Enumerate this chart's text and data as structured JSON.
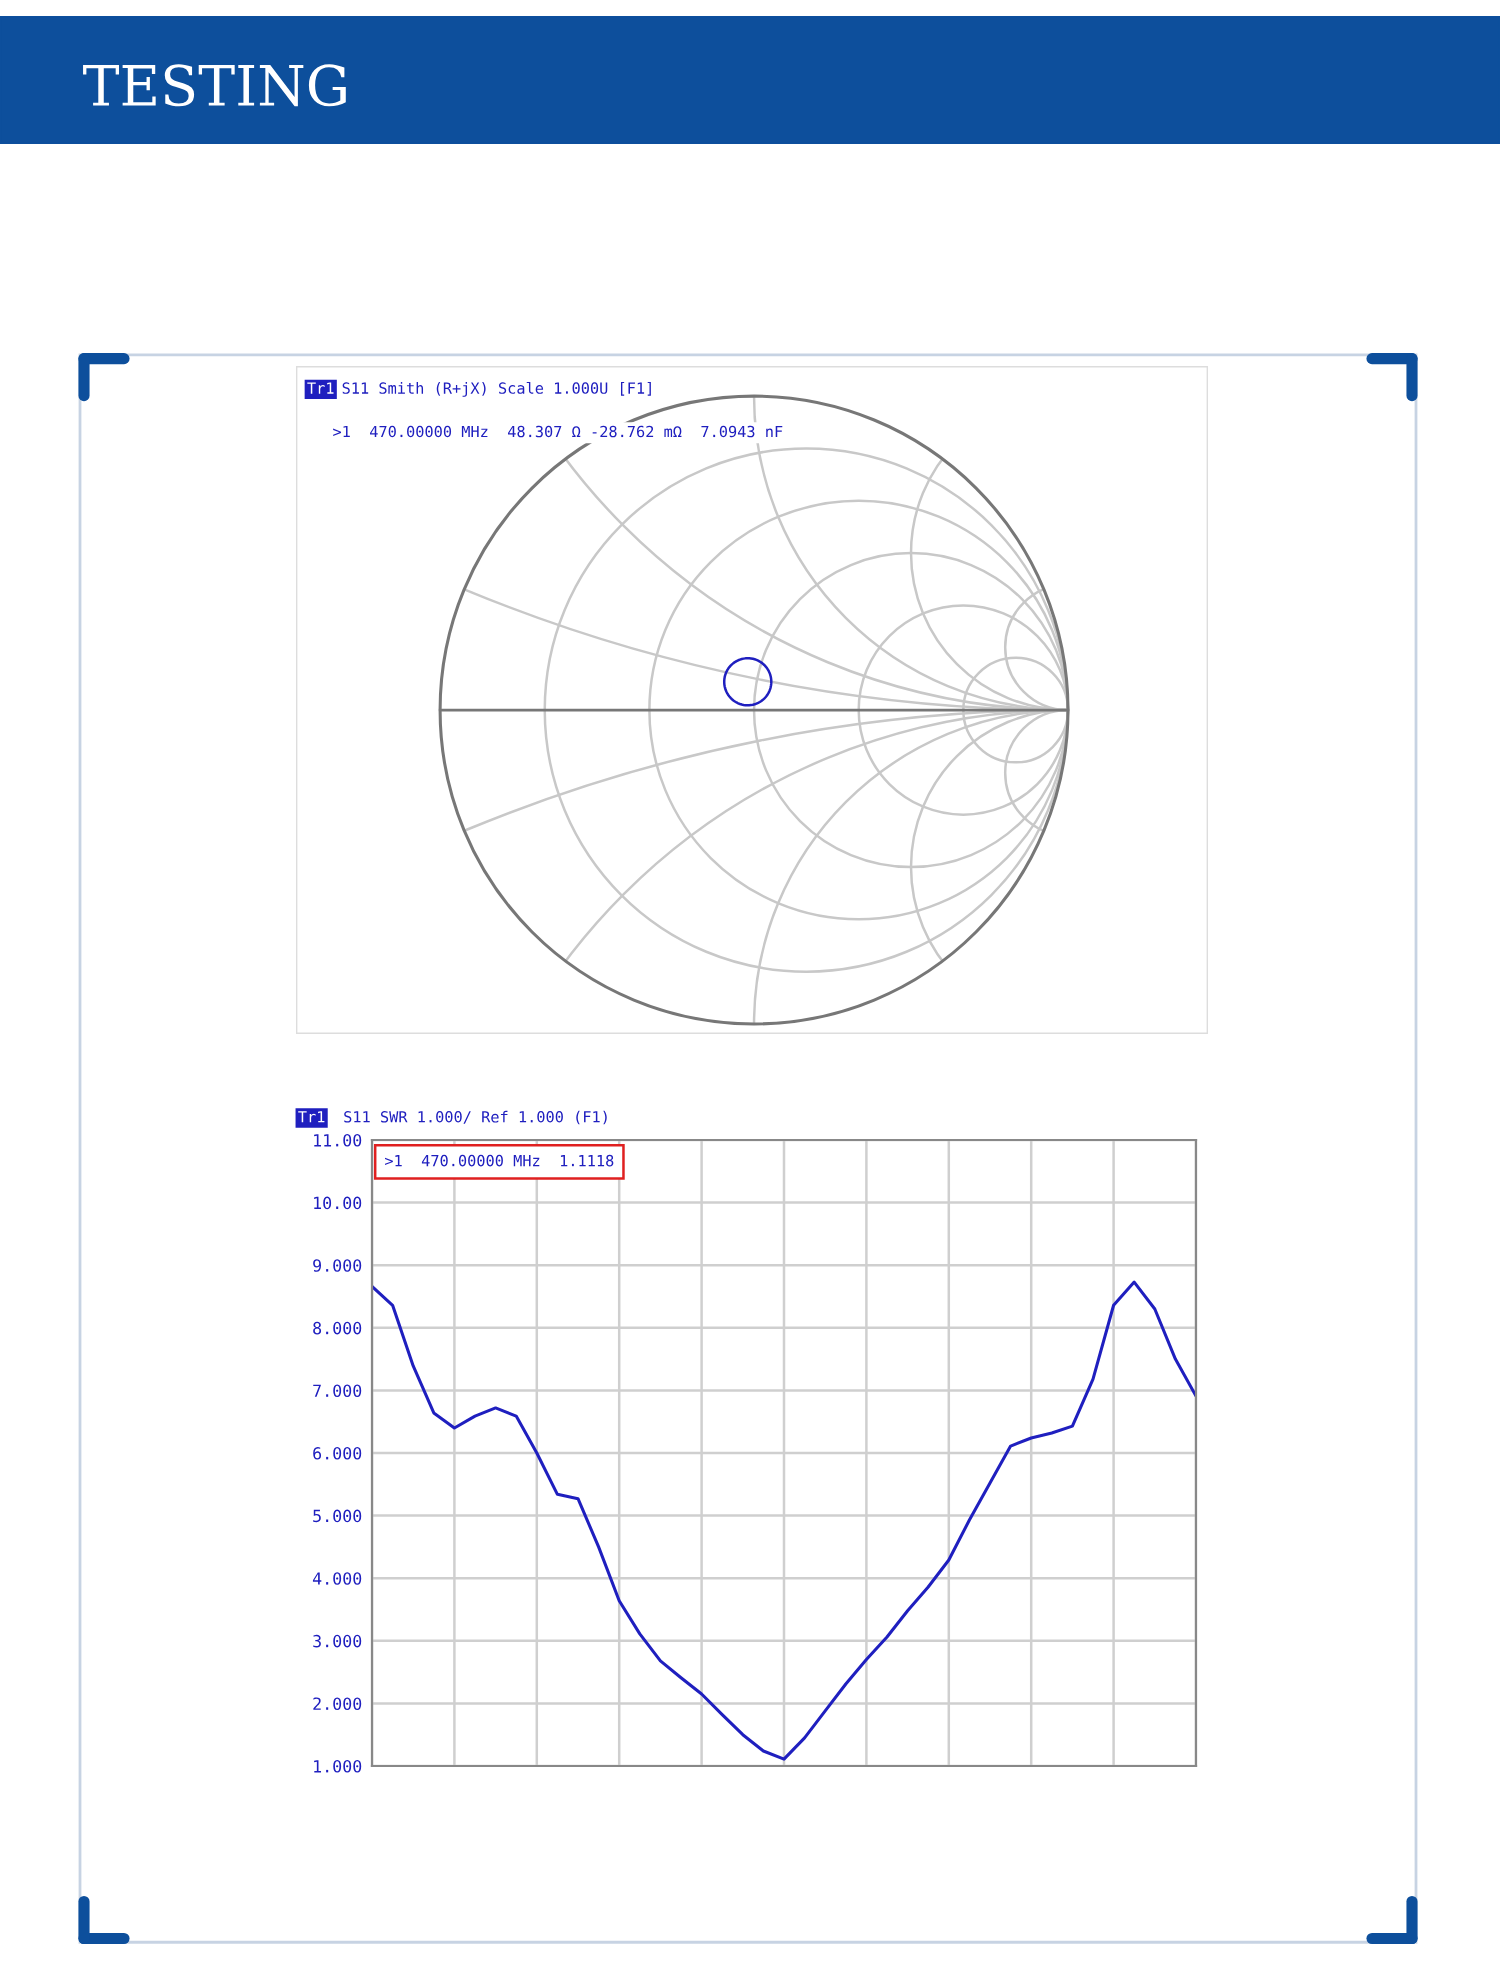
{
  "chart_data": [
    {
      "type": "other",
      "title": "TESTING"
    },
    {
      "type": "other",
      "title": "S11 Smith (R+jX) Scale 1.000U [F1]",
      "subtitle": "Tr1",
      "annotations": [
        ">1  470.00000 MHz  48.307 Ω -28.762 mΩ  7.0943 nF"
      ]
    },
    {
      "type": "line",
      "title": "S11 SWR 1.000/ Ref 1.000 (F1)",
      "subtitle": "Tr1",
      "annotations": [
        ">1  470.00000 MHz  1.1118"
      ],
      "categories": [
        null,
        null,
        null,
        null,
        null,
        null,
        null,
        null,
        null,
        null,
        null,
        null,
        null,
        null,
        null,
        null,
        null,
        null,
        null,
        null,
        null,
        null,
        null,
        null,
        null,
        null,
        null,
        null,
        null,
        null,
        null,
        null,
        null,
        null,
        null,
        null,
        null,
        null,
        null,
        null,
        null
      ],
      "series": [
        {
          "color": "#1f1fbf",
          "values": [
            8.66,
            8.36,
            7.39,
            6.64,
            6.4,
            6.59,
            6.72,
            6.59,
            6.0,
            5.34,
            5.27,
            4.5,
            3.64,
            3.11,
            2.68,
            2.41,
            2.15,
            1.82,
            1.5,
            1.24,
            1.11,
            1.45,
            1.88,
            2.31,
            2.7,
            3.06,
            3.48,
            3.86,
            4.29,
            4.93,
            5.52,
            6.11,
            6.24,
            6.32,
            6.43,
            7.18,
            8.36,
            8.73,
            8.3,
            7.5,
            6.91
          ]
        }
      ],
      "ylim": [
        1,
        11
      ],
      "yticks": [
        {
          "value": 1,
          "label": "1.000"
        },
        {
          "value": 2,
          "label": "2.000"
        },
        {
          "value": 3,
          "label": "3.000"
        },
        {
          "value": 4,
          "label": "4.000"
        },
        {
          "value": 5,
          "label": "5.000"
        },
        {
          "value": 6,
          "label": "6.000"
        },
        {
          "value": 7,
          "label": "7.000"
        },
        {
          "value": 8,
          "label": "8.000"
        },
        {
          "value": 9,
          "label": "9.000"
        },
        {
          "value": 10,
          "label": "10.00"
        },
        {
          "value": 11,
          "label": "11.00"
        }
      ],
      "grid": true,
      "tick_labels": "y",
      "marker": "none",
      "line_style": "solid"
    }
  ]
}
